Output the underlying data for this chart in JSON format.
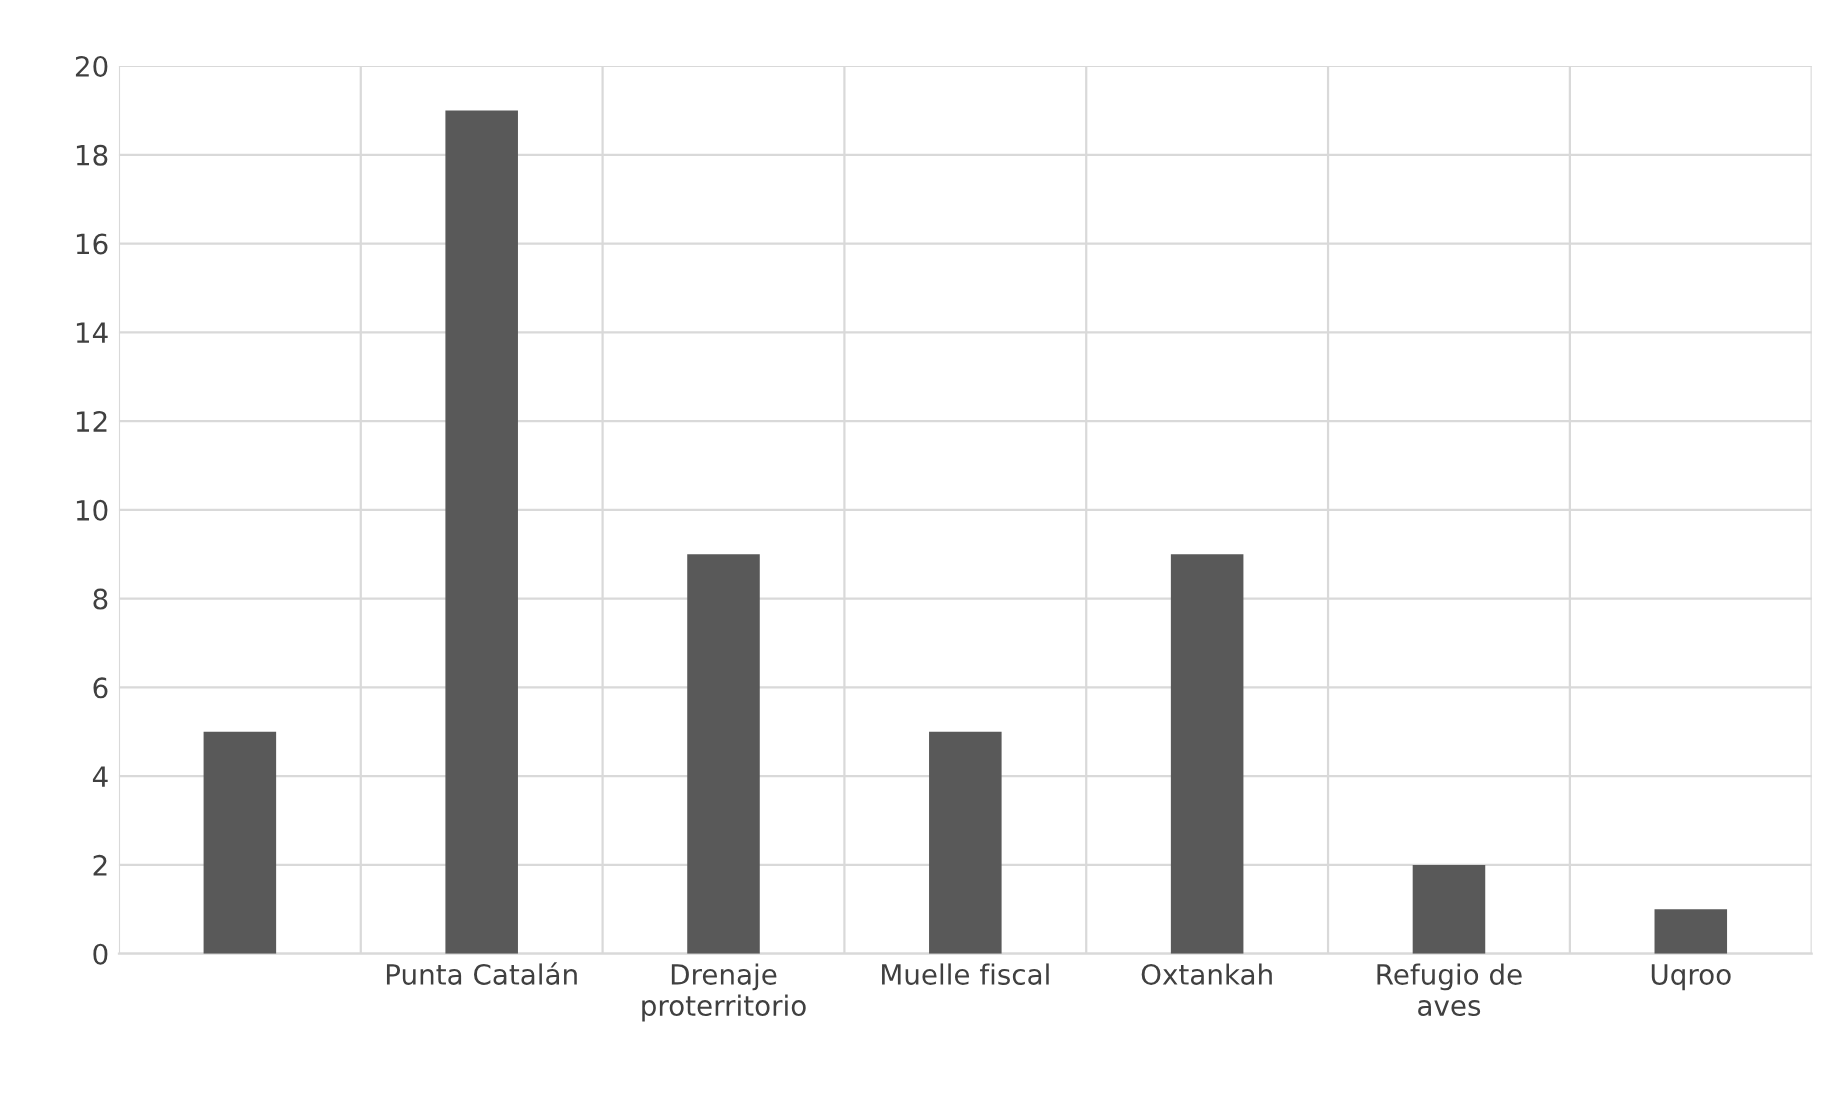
{
  "chart_data": {
    "type": "bar",
    "categories": [
      null,
      "Punta Catalán",
      "Drenaje\nproterritorio",
      "Muelle fiscal",
      "Oxtankah",
      "Refugio de\naves",
      "Uqroo"
    ],
    "values": [
      5,
      19,
      9,
      5,
      9,
      2,
      1
    ],
    "color": "#595959",
    "ylim": [
      0,
      20
    ],
    "yticks": [
      0,
      2,
      4,
      6,
      8,
      10,
      12,
      14,
      16,
      18,
      20
    ],
    "grid": true
  }
}
